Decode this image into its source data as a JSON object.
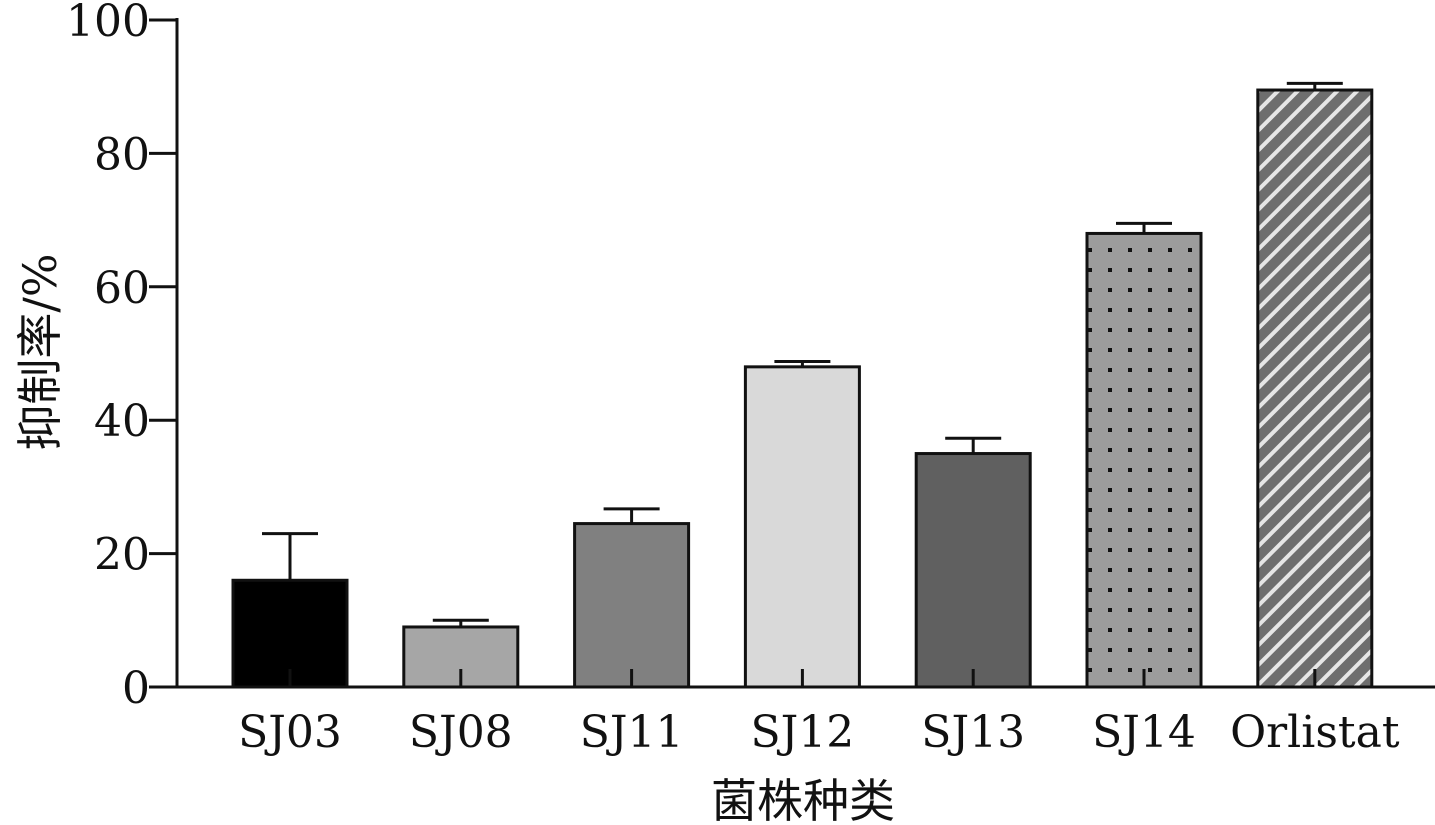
{
  "chart_data": {
    "type": "bar",
    "categories": [
      "SJ03",
      "SJ08",
      "SJ11",
      "SJ12",
      "SJ13",
      "SJ14",
      "Orlistat"
    ],
    "values": [
      16,
      9,
      24.5,
      48,
      35,
      68,
      89.5
    ],
    "errors": [
      7,
      1,
      2.2,
      0.8,
      2.3,
      1.5,
      1
    ],
    "xlabel": "菌株种类",
    "ylabel": "抑制率/%",
    "ylim": [
      0,
      100
    ],
    "yticks": [
      0,
      20,
      40,
      60,
      80,
      100
    ],
    "grid": false,
    "bar_fills": [
      "#000000",
      "#a6a6a6",
      "#808080",
      "#d9d9d9",
      "#606060",
      "dots",
      "stripes"
    ]
  }
}
